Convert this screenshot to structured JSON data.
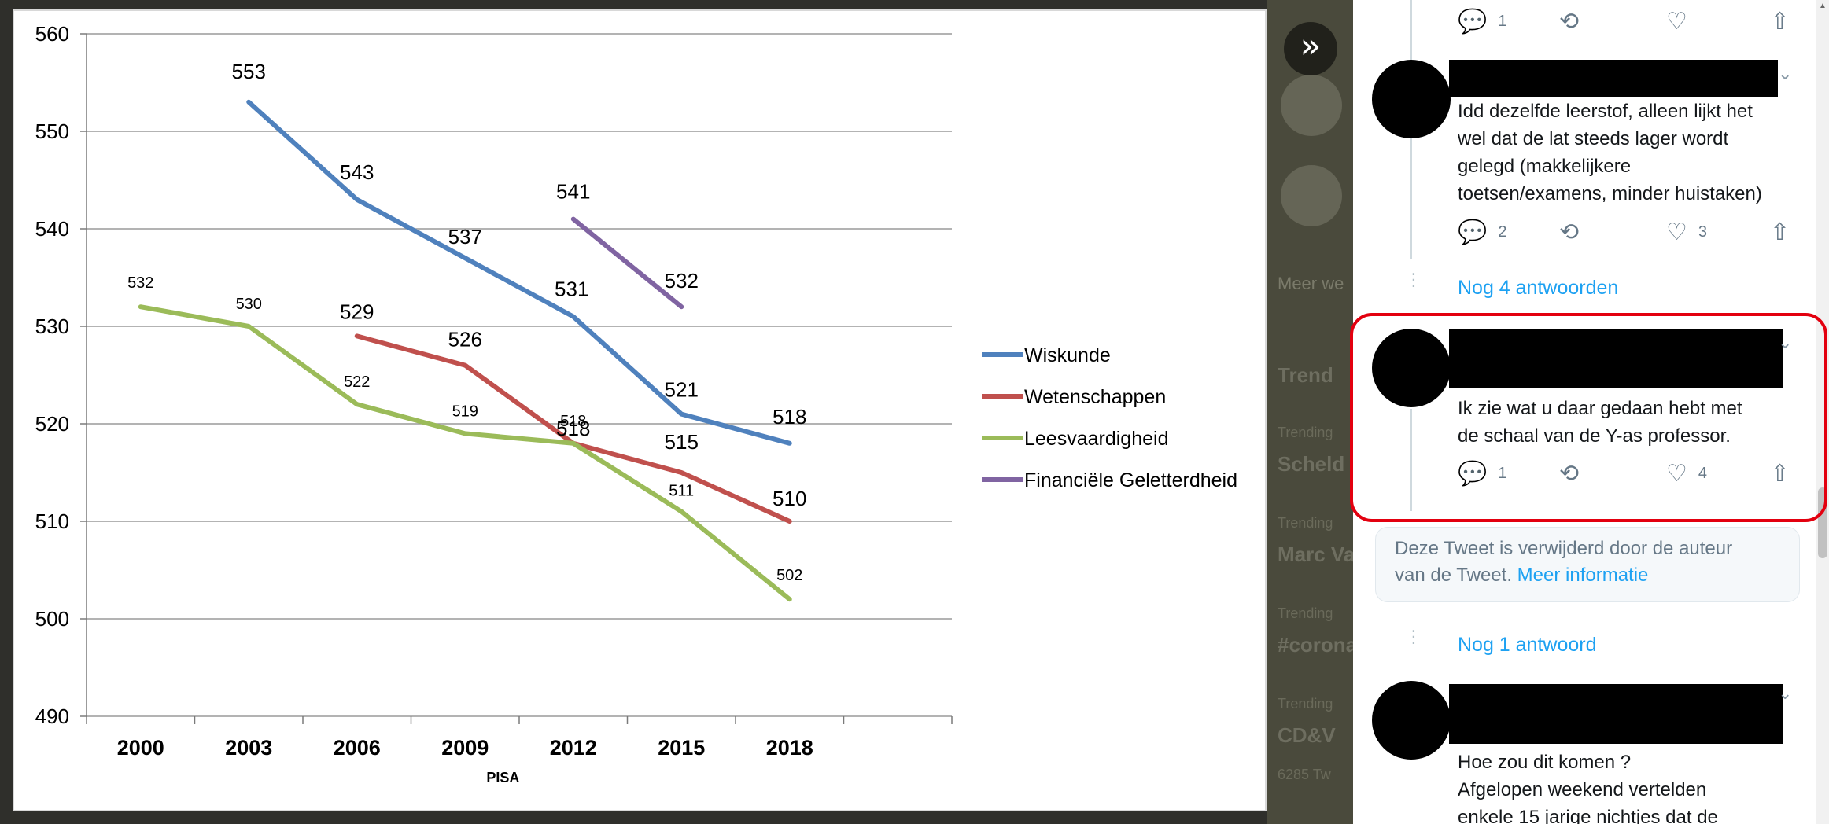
{
  "chart_data": {
    "type": "line",
    "xlabel": "PISA",
    "ylabel": "",
    "ylim": [
      490,
      560
    ],
    "yticks": [
      490,
      500,
      510,
      520,
      530,
      540,
      550,
      560
    ],
    "categories": [
      "2000",
      "2003",
      "2006",
      "2009",
      "2012",
      "2015",
      "2018"
    ],
    "grid": true,
    "legend_position": "right",
    "series": [
      {
        "name": "Wiskunde",
        "color": "#4f81bd",
        "values": [
          null,
          553,
          543,
          537,
          531,
          521,
          518
        ],
        "labels": [
          "",
          "553",
          "543",
          "537",
          "531",
          "521",
          "518"
        ]
      },
      {
        "name": "Wetenschappen",
        "color": "#c0504d",
        "values": [
          null,
          null,
          529,
          526,
          518,
          515,
          510
        ],
        "labels": [
          "",
          "",
          "529",
          "526",
          "518",
          "515",
          "510"
        ]
      },
      {
        "name": "Leesvaardigheid",
        "color": "#9bbb59",
        "values": [
          532,
          530,
          522,
          519,
          518,
          511,
          502
        ],
        "labels": [
          "532",
          "530",
          "522",
          "519",
          "518",
          "511",
          "502"
        ]
      },
      {
        "name": "Financiële Geletterdheid",
        "color": "#8064a2",
        "values": [
          null,
          null,
          null,
          null,
          541,
          532,
          null
        ],
        "labels": [
          "",
          "",
          "",
          "",
          "541",
          "532",
          ""
        ]
      }
    ]
  },
  "viewer": {
    "expand_icon": "double-chevron-right-icon",
    "expand_glyph": "»"
  },
  "sidebar_faded": {
    "meer_label": "Meer we",
    "trends_label": "Trend",
    "trend_items": [
      {
        "kicker": "Trending",
        "name": "Scheld"
      },
      {
        "kicker": "Trending",
        "name": "Marc Va"
      },
      {
        "kicker": "Trending",
        "name": "#corona"
      },
      {
        "kicker": "Trending",
        "name": "CD&V"
      }
    ],
    "count_label": "6285 Tw"
  },
  "thread": {
    "top_actions": {
      "replies": "1",
      "retweets": "",
      "likes": "",
      "share": ""
    },
    "tweet1": {
      "lines": [
        "Idd dezelfde leerstof, alleen lijkt het",
        "wel dat de lat steeds lager wordt",
        "gelegd (makkelijkere",
        "toetsen/examens, minder huistaken)"
      ],
      "replies": "2",
      "likes": "3"
    },
    "more_replies_1": "Nog 4 antwoorden",
    "tweet2": {
      "lines": [
        "Ik zie wat u daar gedaan hebt met",
        "de schaal van de Y-as professor."
      ],
      "replies": "1",
      "likes": "4"
    },
    "deleted": {
      "text_line1": "Deze Tweet is verwijderd door de auteur",
      "text_line2": "van de Tweet.",
      "link": "Meer informatie"
    },
    "more_replies_2": "Nog 1 antwoord",
    "tweet3": {
      "lines": [
        "Hoe zou dit komen ?",
        "Afgelopen weekend vertelden",
        "enkele 15 jarige nichtjes dat de"
      ]
    }
  },
  "icons": {
    "reply": "💬",
    "retweet": "⟲",
    "like": "♡",
    "share": "⇧",
    "chevron": "⌄"
  }
}
